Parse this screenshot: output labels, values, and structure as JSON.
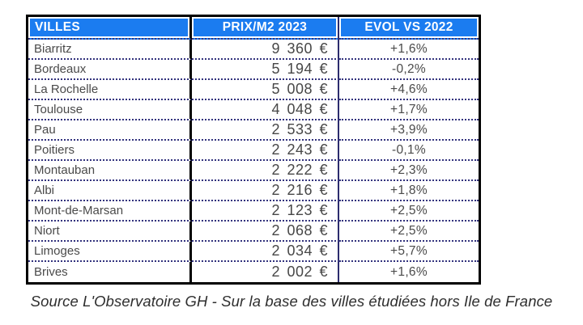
{
  "chart_data": {
    "type": "table",
    "title": "",
    "columns": [
      "VILLES",
      "PRIX/M2 2023",
      "EVOL VS 2022"
    ],
    "rows": [
      {
        "city": "Biarritz",
        "price": "9 360 €",
        "price_value": 9360,
        "evol": "+1,6%",
        "evol_value": 1.6
      },
      {
        "city": "Bordeaux",
        "price": "5 194 €",
        "price_value": 5194,
        "evol": "-0,2%",
        "evol_value": -0.2
      },
      {
        "city": "La Rochelle",
        "price": "5 008 €",
        "price_value": 5008,
        "evol": "+4,6%",
        "evol_value": 4.6
      },
      {
        "city": "Toulouse",
        "price": "4 048 €",
        "price_value": 4048,
        "evol": "+1,7%",
        "evol_value": 1.7
      },
      {
        "city": "Pau",
        "price": "2 533 €",
        "price_value": 2533,
        "evol": "+3,9%",
        "evol_value": 3.9
      },
      {
        "city": "Poitiers",
        "price": "2 243 €",
        "price_value": 2243,
        "evol": "-0,1%",
        "evol_value": -0.1
      },
      {
        "city": "Montauban",
        "price": "2 222 €",
        "price_value": 2222,
        "evol": "+2,3%",
        "evol_value": 2.3
      },
      {
        "city": "Albi",
        "price": "2 216 €",
        "price_value": 2216,
        "evol": "+1,8%",
        "evol_value": 1.8
      },
      {
        "city": "Mont-de-Marsan",
        "price": "2 123 €",
        "price_value": 2123,
        "evol": "+2,5%",
        "evol_value": 2.5
      },
      {
        "city": "Niort",
        "price": "2 068 €",
        "price_value": 2068,
        "evol": "+2,5%",
        "evol_value": 2.5
      },
      {
        "city": "Limoges",
        "price": "2 034 €",
        "price_value": 2034,
        "evol": "+5,7%",
        "evol_value": 5.7
      },
      {
        "city": "Brives",
        "price": "2 002 €",
        "price_value": 2002,
        "evol": "+1,6%",
        "evol_value": 1.6
      }
    ]
  },
  "header": {
    "col_city": "VILLES",
    "col_price": "PRIX/M2 2023",
    "col_evol": "EVOL VS 2022"
  },
  "footer": {
    "source": "Source L'Observatoire GH - Sur la base des villes étudiées hors Ile de France"
  },
  "colors": {
    "header_bg": "#1b7cf0",
    "header_text": "#ffffff",
    "body_text": "#4a4a4a",
    "outer_border": "#000000",
    "dotted_separator": "#32327d",
    "navy_separator": "#2c2c6e"
  }
}
